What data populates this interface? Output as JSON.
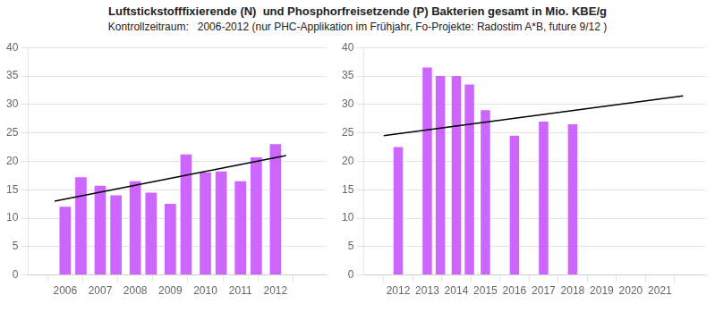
{
  "title": "Luftstickstofffixierende (N)  und Phosphorfreisetzende (P) Bakterien gesamt in Mio. KBE/g",
  "subtitle": "Kontrollzeitraum:   2006-2012 (nur PHC-Applikation im Frühjahr, Fo-Projekte: Radostim A*B, future 9/12 )",
  "chart_data": [
    {
      "type": "bar",
      "series": [
        {
          "type": "bar",
          "color": "#CC66FF",
          "x": [
            2006,
            2006.45,
            2007,
            2007.45,
            2008,
            2008.45,
            2009,
            2009.45,
            2010,
            2010.45,
            2011,
            2011.45,
            2012
          ],
          "values": [
            12.0,
            17.2,
            15.7,
            14.0,
            16.5,
            14.5,
            12.5,
            21.2,
            18.0,
            18.2,
            16.5,
            20.7,
            23.0
          ]
        },
        {
          "type": "line",
          "color": "black",
          "x": [
            2005.7,
            2012.3
          ],
          "values": [
            13.0,
            21.0
          ]
        }
      ],
      "xlim": [
        2005.55,
        2012.85
      ],
      "xticks": [
        2006,
        2007,
        2008,
        2009,
        2010,
        2011,
        2012
      ],
      "ylim": [
        0,
        40
      ],
      "yticks": [
        0,
        5,
        10,
        15,
        20,
        25,
        30,
        35,
        40
      ],
      "grid": true
    },
    {
      "type": "bar",
      "series": [
        {
          "type": "bar",
          "color": "#CC66FF",
          "x": [
            2012,
            2013,
            2013.45,
            2014,
            2014.45,
            2015,
            2016,
            2017,
            2018
          ],
          "values": [
            22.5,
            36.5,
            35.0,
            35.0,
            33.5,
            29.0,
            24.5,
            27.0,
            26.5
          ]
        },
        {
          "type": "line",
          "color": "black",
          "x": [
            2011.5,
            2021.8
          ],
          "values": [
            24.5,
            31.5
          ]
        }
      ],
      "xlim": [
        2011.4,
        2022.0
      ],
      "xticks": [
        2012,
        2013,
        2014,
        2015,
        2016,
        2017,
        2018,
        2019,
        2020,
        2021
      ],
      "ylim": [
        0,
        40
      ],
      "yticks": [
        0,
        5,
        10,
        15,
        20,
        25,
        30,
        35,
        40
      ],
      "grid": true
    }
  ]
}
